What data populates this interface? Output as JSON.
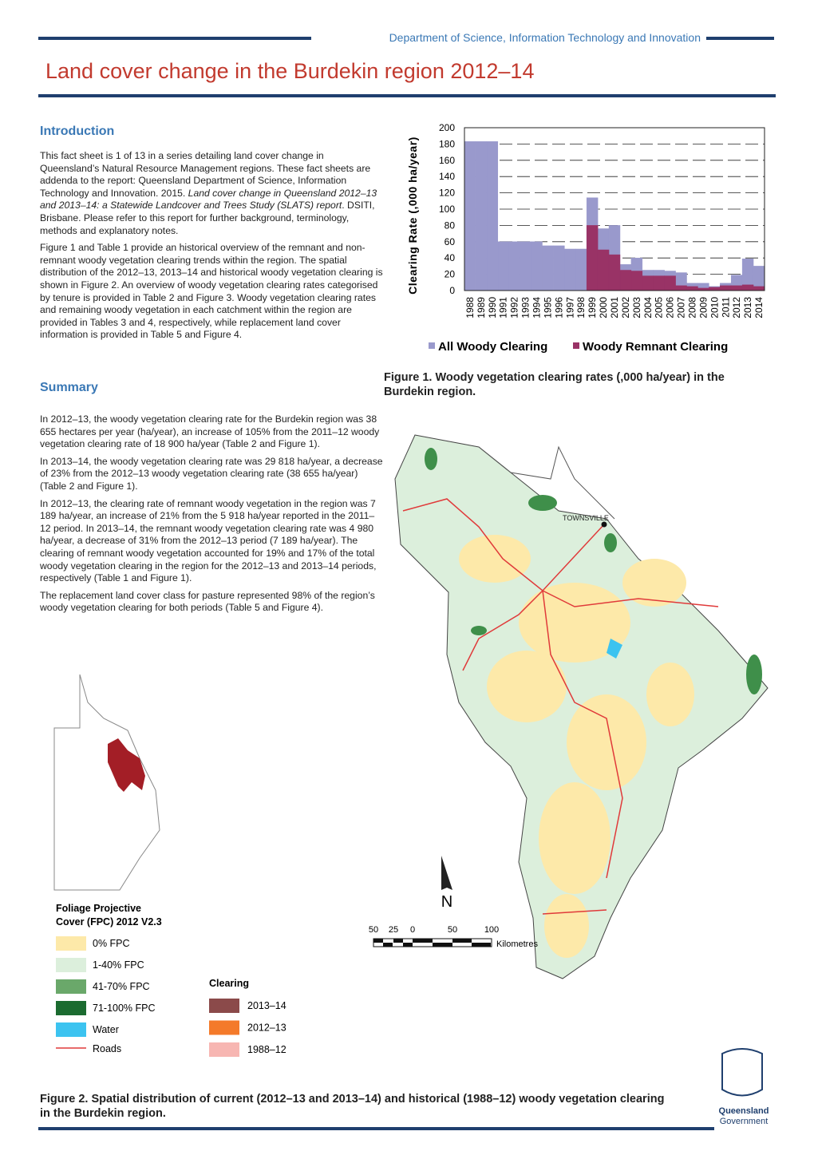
{
  "header": {
    "department": "Department of Science, Information Technology and Innovation",
    "title": "Land cover change in the Burdekin region 2012–14"
  },
  "introduction": {
    "heading": "Introduction",
    "paragraphs": [
      [
        "This fact sheet is 1 of 13 in a series detailing land cover change in Queensland’s Natural Resource Management regions. These fact sheets are addenda to the report: Queensland Department of Science, Information Technology and Innovation. 2015. ",
        "Land cover change in Queensland 2012–13 and 2013–14: a Statewide Landcover and Trees Study (SLATS) report",
        ". DSITI, Brisbane. Please refer to this report for further background, terminology, methods and explanatory notes."
      ],
      [
        "Figure 1 and Table 1 provide an historical overview of the remnant and non-remnant woody vegetation clearing trends within the region. The spatial distribution of the 2012–13, 2013–14 and historical woody vegetation clearing is shown in Figure 2. An overview of woody vegetation clearing rates categorised by tenure is provided in Table 2 and Figure 3. Woody vegetation clearing rates and remaining woody vegetation in each catchment within the region are provided in Tables 3 and 4, respectively, while replacement land cover information is provided in Table 5 and Figure 4."
      ]
    ]
  },
  "summary": {
    "heading": "Summary",
    "paragraphs": [
      "In 2012–13, the woody vegetation clearing rate for the Burdekin region was 38 655 hectares per year (ha/year), an increase of 105% from the 2011–12 woody vegetation clearing rate of 18 900 ha/year (Table 2 and Figure 1).",
      "In 2013–14, the woody vegetation clearing rate was 29 818 ha/year, a decrease of 23% from the 2012–13 woody vegetation clearing rate (38 655 ha/year) (Table 2 and Figure 1).",
      "In 2012–13, the clearing rate of remnant woody vegetation in the region was 7 189 ha/year, an increase of 21% from the 5 918 ha/year reported in the 2011–12 period. In 2013–14, the remnant woody vegetation clearing rate was 4 980 ha/year, a decrease of 31% from the 2012–13 period (7 189 ha/year). The clearing of remnant woody vegetation accounted for 19% and 17% of the total woody vegetation clearing in the region for the 2012–13 and 2013–14 periods, respectively (Table 1 and Figure 1).",
      "The replacement land cover class for pasture represented 98% of the region’s woody vegetation clearing for both periods (Table 5 and Figure 4)."
    ]
  },
  "chart_data": {
    "type": "bar",
    "ylabel": "Clearing Rate (,000 ha/year)",
    "categories": [
      "1988",
      "1989",
      "1990",
      "1991",
      "1992",
      "1993",
      "1994",
      "1995",
      "1996",
      "1997",
      "1998",
      "1999",
      "2000",
      "2001",
      "2002",
      "2003",
      "2004",
      "2005",
      "2006",
      "2007",
      "2008",
      "2009",
      "2010",
      "2011",
      "2012",
      "2013",
      "2014"
    ],
    "series": [
      {
        "name": "All Woody Clearing",
        "color": "#9999cc",
        "values": [
          183,
          183,
          183,
          60,
          60,
          60,
          60,
          55,
          55,
          51,
          51,
          114,
          76,
          80,
          32,
          40,
          25,
          25,
          24,
          22,
          9,
          9,
          5,
          9,
          19,
          39,
          30
        ]
      },
      {
        "name": "Woody Remnant Clearing",
        "color": "#993366",
        "values": [
          null,
          null,
          null,
          null,
          null,
          null,
          null,
          null,
          null,
          null,
          null,
          80,
          50,
          44,
          25,
          24,
          18,
          18,
          18,
          6,
          5,
          3,
          4,
          6,
          6,
          7,
          5
        ]
      }
    ],
    "ylim": [
      0,
      200
    ],
    "yticks": [
      0,
      20,
      40,
      60,
      80,
      100,
      120,
      140,
      160,
      180,
      200
    ],
    "grid": true,
    "legend": "bottom"
  },
  "figure1_caption": "Figure 1. Woody vegetation clearing rates (,000 ha/year) in the Burdekin region.",
  "map": {
    "place_label": "TOWNSVILLE",
    "north": "N",
    "scale_labels": [
      "50",
      "25",
      "0",
      "50",
      "100"
    ],
    "scale_unit": "Kilometres",
    "legend": {
      "title": "Foliage Projective Cover (FPC) 2012 V2.3",
      "items": [
        {
          "label": "0% FPC",
          "color": "#fde9a9"
        },
        {
          "label": "1-40% FPC",
          "color": "#dcefdc"
        },
        {
          "label": "41-70% FPC",
          "color": "#6aa86a"
        },
        {
          "label": "71-100% FPC",
          "color": "#1b6b30"
        },
        {
          "label": "Water",
          "color": "#3cc3f0"
        }
      ],
      "roads": {
        "label": "Roads",
        "color": "#e03a3a"
      }
    },
    "clearing_legend": {
      "title": "Clearing",
      "items": [
        {
          "label": "2013–14",
          "color": "#8b4a4a"
        },
        {
          "label": "2012–13",
          "color": "#f47a2a"
        },
        {
          "label": "1988–12",
          "color": "#f7b6b2"
        }
      ]
    }
  },
  "figure2_caption": "Figure 2. Spatial distribution of current (2012–13 and 2013–14) and historical (1988–12) woody vegetation clearing in the Burdekin region.",
  "logo": {
    "line1": "Queensland",
    "line2": "Government"
  }
}
